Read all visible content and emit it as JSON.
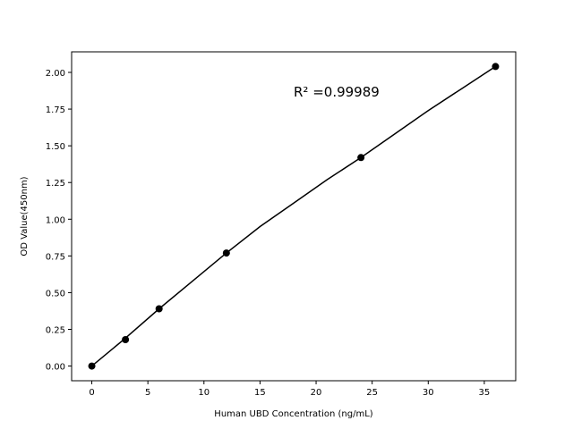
{
  "chart_data": {
    "type": "scatter",
    "xlabel": "Human UBD Concentration (ng/mL)",
    "ylabel": "OD Value(450nm)",
    "annotation": "R² =0.99989",
    "x": [
      0,
      3,
      6,
      12,
      24,
      36
    ],
    "values": [
      0.0,
      0.18,
      0.39,
      0.77,
      1.42,
      2.04
    ],
    "color": "#000000",
    "fit": {
      "x": [
        0,
        3,
        6,
        9,
        12,
        15,
        18,
        21,
        24,
        27,
        30,
        33,
        36
      ],
      "values": [
        0.0,
        0.19,
        0.39,
        0.58,
        0.77,
        0.95,
        1.11,
        1.27,
        1.42,
        1.58,
        1.74,
        1.89,
        2.04
      ],
      "color": "#000000"
    },
    "xlim": [
      -1.8,
      37.8
    ],
    "ylim": [
      -0.1,
      2.14
    ],
    "xticks": [
      0,
      5,
      10,
      15,
      20,
      25,
      30,
      35
    ],
    "yticks": [
      {
        "value": 0,
        "label": "0.00"
      },
      {
        "value": 0.25,
        "label": "0.25"
      },
      {
        "value": 0.5,
        "label": "0.50"
      },
      {
        "value": 0.75,
        "label": "0.75"
      },
      {
        "value": 1,
        "label": "1.00"
      },
      {
        "value": 1.25,
        "label": "1.25"
      },
      {
        "value": 1.5,
        "label": "1.50"
      },
      {
        "value": 1.75,
        "label": "1.75"
      },
      {
        "value": 2,
        "label": "2.00"
      }
    ]
  }
}
